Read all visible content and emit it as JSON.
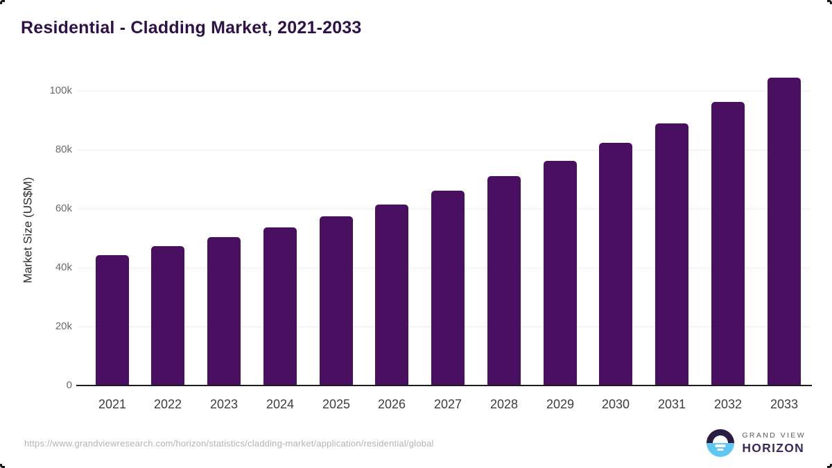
{
  "title": "Residential - Cladding Market, 2021-2033",
  "chart_data": {
    "type": "bar",
    "title": "Residential - Cladding Market, 2021-2033",
    "categories": [
      "2021",
      "2022",
      "2023",
      "2024",
      "2025",
      "2026",
      "2027",
      "2028",
      "2029",
      "2030",
      "2031",
      "2032",
      "2033"
    ],
    "values": [
      44300,
      47400,
      50400,
      53700,
      57300,
      61500,
      66100,
      71000,
      76300,
      82400,
      89000,
      96200,
      104400
    ],
    "xlabel": "",
    "ylabel": "Market Size (US$M)",
    "ylim": [
      0,
      110000
    ],
    "yticks": [
      {
        "value": 0,
        "label": "0"
      },
      {
        "value": 20000,
        "label": "20k"
      },
      {
        "value": 40000,
        "label": "40k"
      },
      {
        "value": 60000,
        "label": "60k"
      },
      {
        "value": 80000,
        "label": "80k"
      },
      {
        "value": 100000,
        "label": "100k"
      }
    ],
    "grid": "horizontal",
    "legend": "none",
    "bar_color": "#491061"
  },
  "footer": {
    "url": "https://www.grandviewresearch.com/horizon/statistics/cladding-market/application/residential/global",
    "logo": {
      "line1": "GRAND VIEW",
      "line2": "HORIZON"
    }
  },
  "colors": {
    "bar": "#491061",
    "title": "#2f1147",
    "grid": "#ececec",
    "axis": "#1c1c1c",
    "xlabel": "#3d3d3d",
    "ylabel": "#6b6b6b",
    "ytitle": "#2b2b2b",
    "url": "#b3b3b3",
    "logo_navy": "#2b1b43",
    "logo_blue": "#5ec7f2",
    "gv_text": "#5b5966",
    "hz_text": "#3a2a5a"
  }
}
